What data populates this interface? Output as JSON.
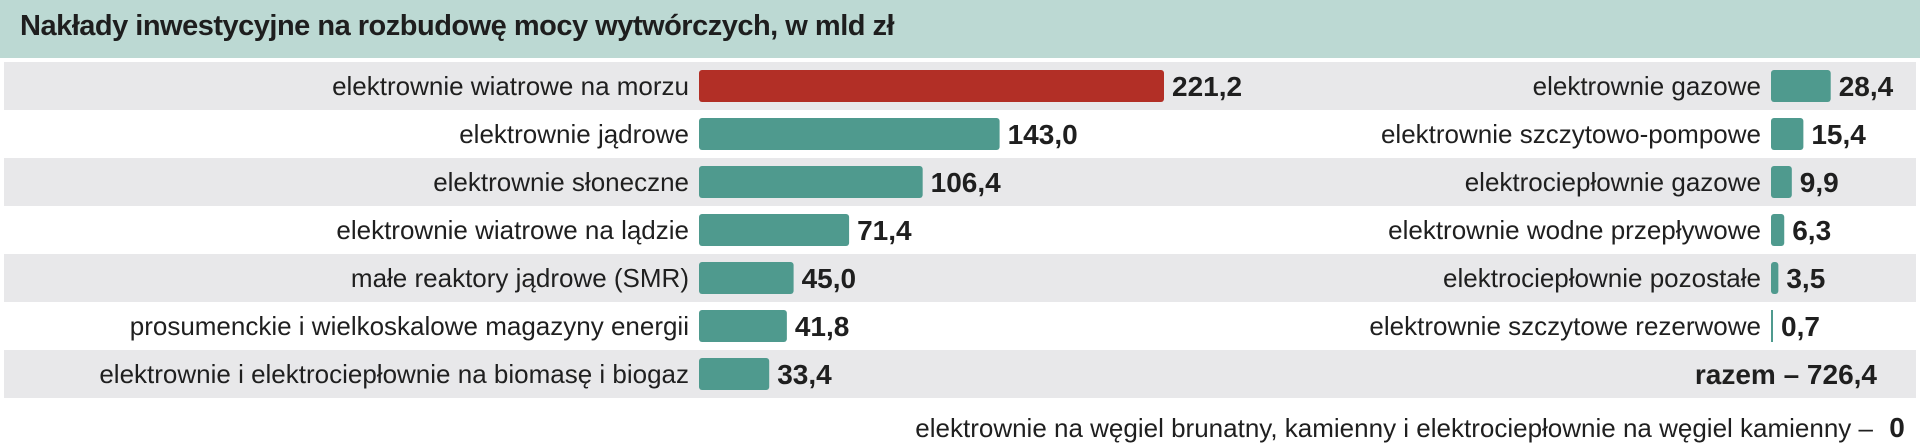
{
  "chart_data": {
    "type": "bar",
    "title": "Nakłady inwestycyjne na rozbudowę mocy wytwórczych, w mld zł",
    "colors": {
      "highlight": "#b22f26",
      "bar": "#4f9a8e",
      "header": "#bcd9d3",
      "stripe": "#e8e8ea"
    },
    "left": {
      "categories": [
        "elektrownie wiatrowe na morzu",
        "elektrownie jądrowe",
        "elektrownie słoneczne",
        "elektrownie wiatrowe na lądzie",
        "małe reaktory jądrowe (SMR)",
        "prosumenckie i wielkoskalowe magazyny energii",
        "elektrownie i elektrociepłownie na biomasę i biogaz"
      ],
      "values": [
        221.2,
        143.0,
        106.4,
        71.4,
        45.0,
        41.8,
        33.4
      ],
      "labels": [
        "221,2",
        "143,0",
        "106,4",
        "71,4",
        "45,0",
        "41,8",
        "33,4"
      ]
    },
    "right": {
      "categories": [
        "elektrownie gazowe",
        "elektrownie szczytowo-pompowe",
        "elektrociepłownie gazowe",
        "elektrownie wodne przepływowe",
        "elektrociepłownie pozostałe",
        "elektrownie szczytowe rezerwowe"
      ],
      "values": [
        28.4,
        15.4,
        9.9,
        6.3,
        3.5,
        0.7
      ],
      "labels": [
        "28,4",
        "15,4",
        "9,9",
        "6,3",
        "3,5",
        "0,7"
      ]
    },
    "total": "razem – 726,4",
    "footnote_text": "elektrownie na węgiel brunatny, kamienny i elektrociepłownie na węgiel kamienny –",
    "footnote_value": "0"
  }
}
